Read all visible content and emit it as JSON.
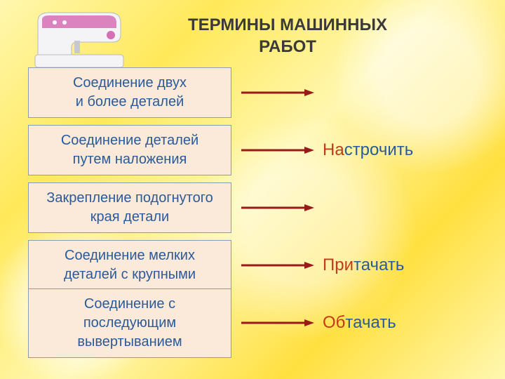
{
  "title": {
    "text": "ТЕРМИНЫ МАШИННЫХ РАБОТ",
    "fontsize": 24,
    "color": "#3a3a3a"
  },
  "box_style": {
    "bg": "#fbe9da",
    "border": "#8a9db0",
    "text_color": "#2a5a9a",
    "fontsize": 20
  },
  "arrow_style": {
    "color": "#9a1a1a",
    "stroke_width": 3,
    "length": 110,
    "head_w": 14,
    "head_h": 10
  },
  "term_style": {
    "prefix_color": "#c23a1a",
    "suffix_color": "#2a5a9a",
    "fontsize": 24
  },
  "rows": [
    {
      "box": "Соединение двух\nи более деталей",
      "term_prefix": "",
      "term_suffix": ""
    },
    {
      "box": "Соединение деталей\nпутем наложения",
      "term_prefix": "На",
      "term_suffix": "строчить"
    },
    {
      "box": "Закрепление подогнутого\nкрая детали",
      "term_prefix": "",
      "term_suffix": ""
    },
    {
      "box": "Соединение мелких\nдеталей с крупными",
      "term_prefix": "При",
      "term_suffix": "тачать"
    },
    {
      "box": "Соединение с последующим\nвывертыванием",
      "term_prefix": "Об",
      "term_suffix": "тачать"
    }
  ],
  "machine": {
    "body_color": "#f4f4f6",
    "accent_color": "#d66fb5",
    "outline": "#b8b8c0"
  }
}
